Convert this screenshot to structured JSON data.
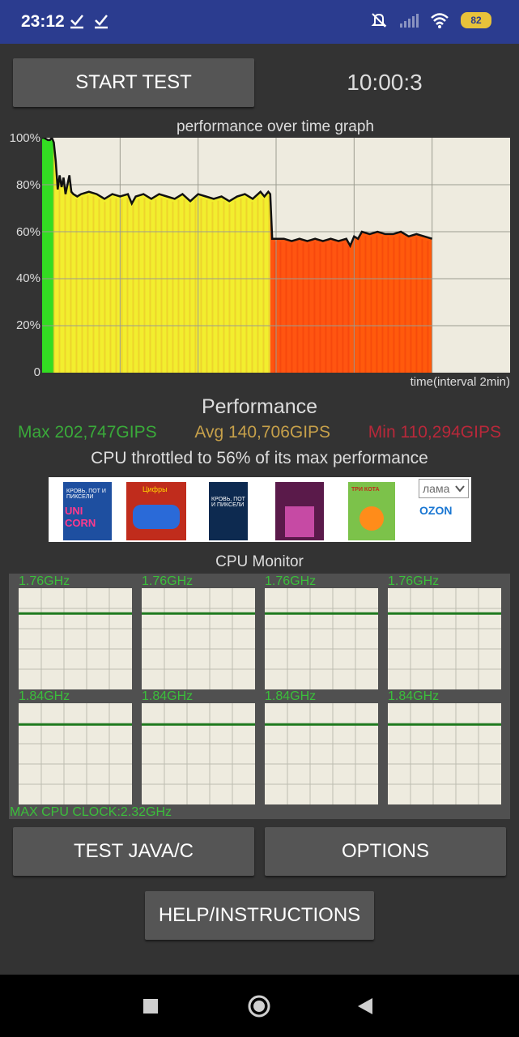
{
  "status_bar": {
    "time": "23:12",
    "battery": "82",
    "icons": [
      "check-icon",
      "check-icon",
      "silent-icon",
      "signal-icon",
      "wifi-icon",
      "battery-icon"
    ]
  },
  "toolbar": {
    "start_test_label": "START TEST",
    "timer": "10:00:3"
  },
  "graph": {
    "title": "performance over time graph",
    "y_ticks": [
      "100%",
      "80%",
      "60%",
      "40%",
      "20%",
      "0"
    ],
    "x_label": "time(interval 2min)"
  },
  "chart_data": {
    "type": "line",
    "title": "performance over time graph",
    "xlabel": "time(interval 2min)",
    "ylabel": "",
    "ylim": [
      0,
      100
    ],
    "xlim": [
      0,
      12
    ],
    "grid": true,
    "x": [
      0,
      0.05,
      0.15,
      0.2,
      0.25,
      0.3,
      0.35,
      0.4,
      0.45,
      0.5,
      0.55,
      0.6,
      0.65,
      0.7,
      0.75,
      0.8,
      0.9,
      1.0,
      1.2,
      1.4,
      1.6,
      1.8,
      2.0,
      2.2,
      2.3,
      2.4,
      2.6,
      2.8,
      3.0,
      3.2,
      3.4,
      3.6,
      3.8,
      4.0,
      4.2,
      4.4,
      4.6,
      4.8,
      5.0,
      5.2,
      5.4,
      5.6,
      5.7,
      5.8,
      5.85,
      5.9,
      6.0,
      6.2,
      6.4,
      6.6,
      6.8,
      7.0,
      7.2,
      7.4,
      7.6,
      7.8,
      7.9,
      8.0,
      8.1,
      8.2,
      8.4,
      8.6,
      8.8,
      9.0,
      9.2,
      9.4,
      9.6,
      9.8,
      10.0
    ],
    "series": [
      {
        "values": [
          100,
          100,
          99,
          99,
          100,
          98,
          90,
          78,
          84,
          79,
          83,
          76,
          80,
          84,
          77,
          76,
          75,
          76,
          77,
          76,
          74,
          76,
          75,
          76,
          72,
          75,
          76,
          74,
          76,
          75,
          74,
          76,
          73,
          76,
          75,
          74,
          75,
          73,
          75,
          76,
          74,
          77,
          75,
          77,
          76,
          57,
          57,
          57,
          56,
          57,
          56,
          57,
          56,
          57,
          56,
          57,
          54,
          58,
          57,
          60,
          59,
          60,
          59,
          59,
          60,
          58,
          59,
          58,
          57
        ]
      }
    ],
    "bands": [
      {
        "x0": 0,
        "x1": 0.3,
        "color": "#33dd22"
      },
      {
        "x0": 0.3,
        "x1": 5.85,
        "color": "#f2ee2e"
      },
      {
        "x0": 5.85,
        "x1": 7.9,
        "color": "#ff5511"
      },
      {
        "x0": 7.9,
        "x1": 10.0,
        "color": "#ff5a0c"
      }
    ]
  },
  "performance": {
    "title": "Performance",
    "max": "Max 202,747GIPS",
    "avg": "Avg 140,706GIPS",
    "min": "Min 110,294GIPS",
    "throttle_text": "CPU throttled to 56% of its max performance",
    "colors": {
      "max": "#3aaa3a",
      "avg": "#c6a04a",
      "min": "#b8283a"
    }
  },
  "ad": {
    "select_label": "лама",
    "brand": "OZON",
    "books": [
      {
        "title": "КРОВЬ, ПОТ И ПИКСЕЛИ",
        "subtitle": "UNI CORN",
        "color": "#1e4fa0"
      },
      {
        "title": "Цифры",
        "subtitle": "",
        "color": "#c02c1c"
      },
      {
        "title": "КРОВЬ, ПОТ И ПИКСЕЛИ",
        "subtitle": "",
        "color": "#0d2a50"
      },
      {
        "title": "",
        "subtitle": "",
        "color": "#5a1a4a"
      },
      {
        "title": "ТРИ КОТА",
        "subtitle": "",
        "color": "#7cc24a"
      }
    ]
  },
  "cpu_monitor": {
    "title": "CPU Monitor",
    "cores": [
      {
        "freq": "1.76GHz",
        "level": 0.75
      },
      {
        "freq": "1.76GHz",
        "level": 0.75
      },
      {
        "freq": "1.76GHz",
        "level": 0.75
      },
      {
        "freq": "1.76GHz",
        "level": 0.75
      },
      {
        "freq": "1.84GHz",
        "level": 0.79
      },
      {
        "freq": "1.84GHz",
        "level": 0.79
      },
      {
        "freq": "1.84GHz",
        "level": 0.79
      },
      {
        "freq": "1.84GHz",
        "level": 0.79
      }
    ],
    "max_clock": "MAX CPU CLOCK:2.32GHz"
  },
  "buttons": {
    "test_java_c": "TEST JAVA/C",
    "options": "OPTIONS",
    "help": "HELP/INSTRUCTIONS"
  },
  "nav_bar": {
    "icons": [
      "recents-icon",
      "home-icon",
      "back-icon"
    ]
  }
}
